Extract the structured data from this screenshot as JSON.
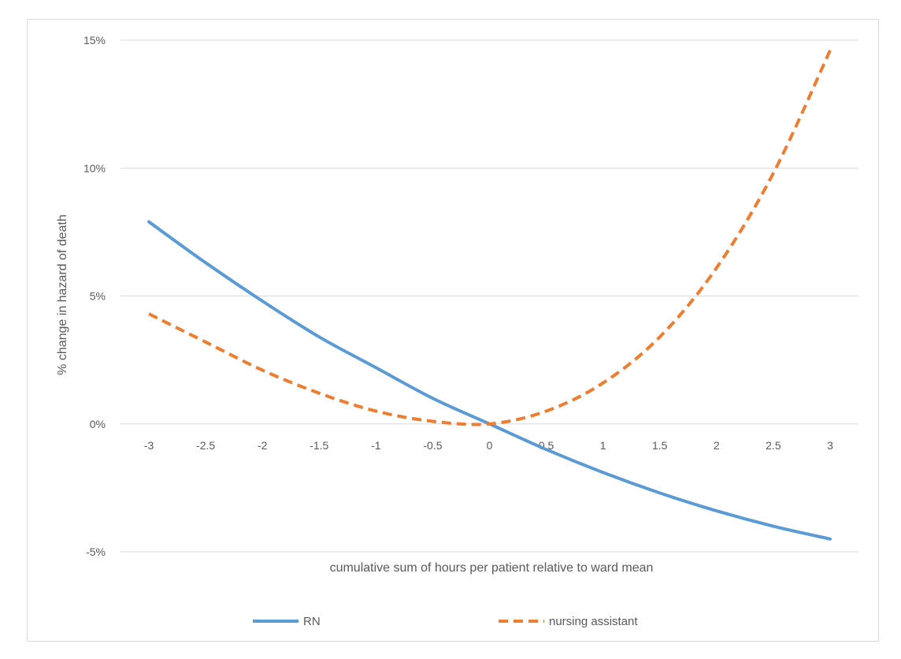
{
  "chart_data": {
    "type": "line",
    "title": "",
    "xlabel": "cumulative sum of hours per patient relative to ward mean",
    "ylabel": "% change in hazard of death",
    "x": [
      -3,
      -2.5,
      -2,
      -1.5,
      -1,
      -0.5,
      0,
      0.5,
      1,
      1.5,
      2,
      2.5,
      3
    ],
    "x_tick_labels": [
      "-3",
      "-2.5",
      "-2",
      "-1.5",
      "-1",
      "-0.5",
      "0",
      "0.5",
      "1",
      "1.5",
      "2",
      "2.5",
      "3"
    ],
    "ylim": [
      -0.05,
      0.15
    ],
    "y_ticks": [
      -0.05,
      0,
      0.05,
      0.1,
      0.15
    ],
    "y_tick_labels": [
      "-5%",
      "0%",
      "5%",
      "10%",
      "15%"
    ],
    "grid": true,
    "legend_position": "bottom",
    "series": [
      {
        "name": "RN",
        "color": "#5b9bd5",
        "style": "solid",
        "values": [
          0.079,
          0.063,
          0.048,
          0.034,
          0.022,
          0.01,
          0.0,
          -0.01,
          -0.019,
          -0.027,
          -0.034,
          -0.04,
          -0.045
        ]
      },
      {
        "name": "nursing assistant",
        "color": "#ed7d31",
        "style": "dashed",
        "values": [
          0.043,
          0.032,
          0.021,
          0.012,
          0.005,
          0.001,
          0.0,
          0.005,
          0.016,
          0.034,
          0.061,
          0.098,
          0.146
        ]
      }
    ]
  }
}
